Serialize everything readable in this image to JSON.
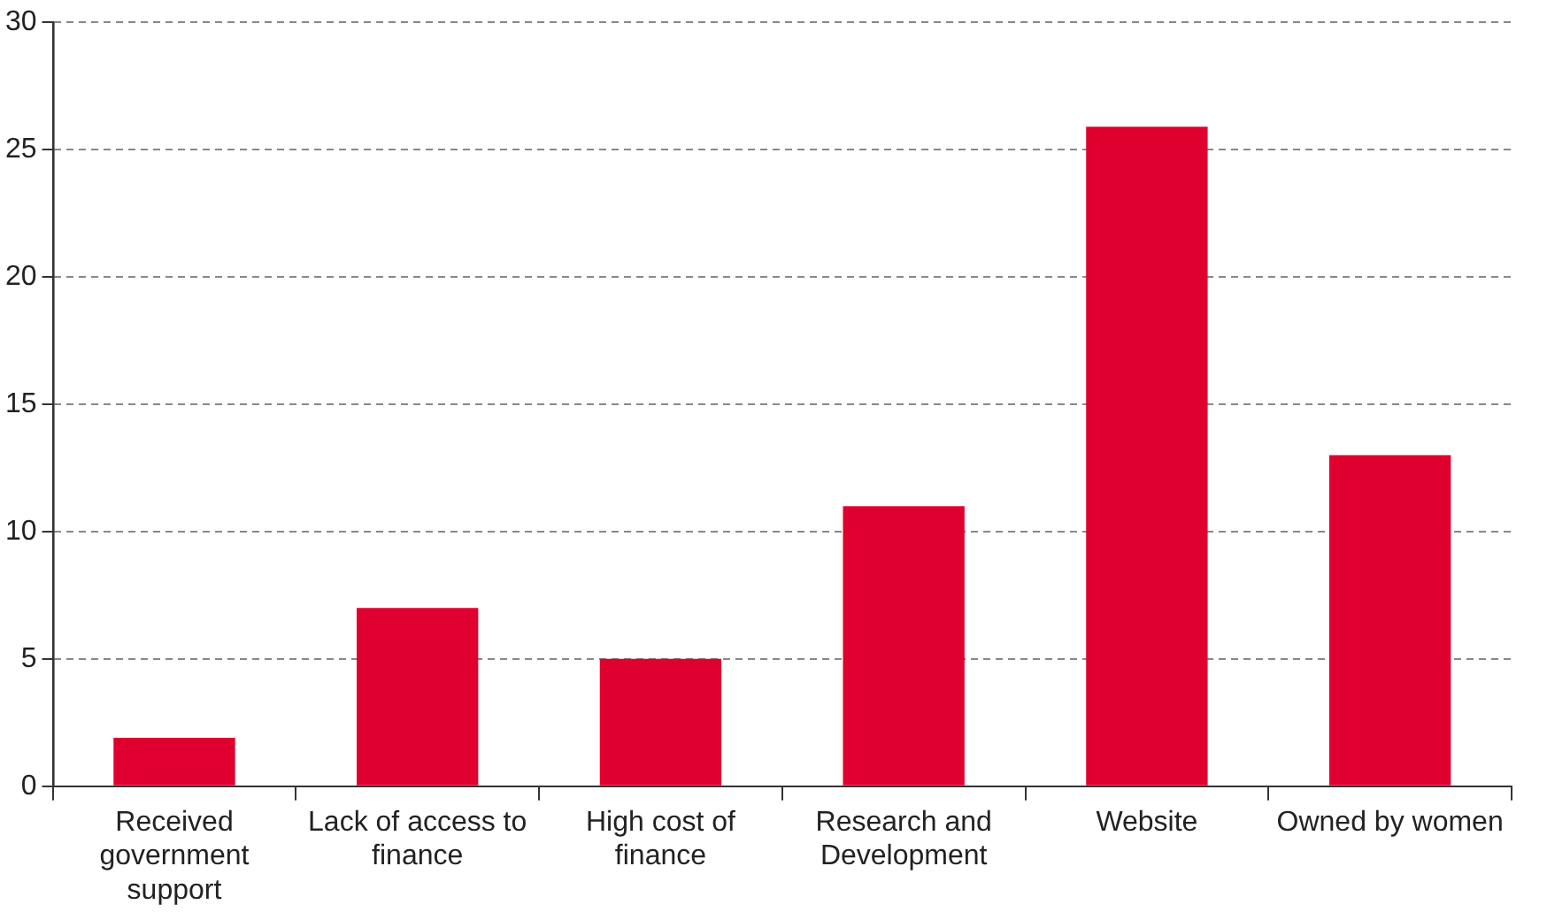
{
  "chart_data": {
    "type": "bar",
    "categories": [
      "Received government support",
      "Lack of access to finance",
      "High cost of finance",
      "Research and Development",
      "Website",
      "Owned by women"
    ],
    "values": [
      1.9,
      7,
      5,
      11,
      25.9,
      13
    ],
    "color": "#e0002f",
    "ylim": [
      0,
      30
    ],
    "yticks": [
      0,
      5,
      10,
      15,
      20,
      25,
      30
    ],
    "grid": "y",
    "legend": false
  }
}
